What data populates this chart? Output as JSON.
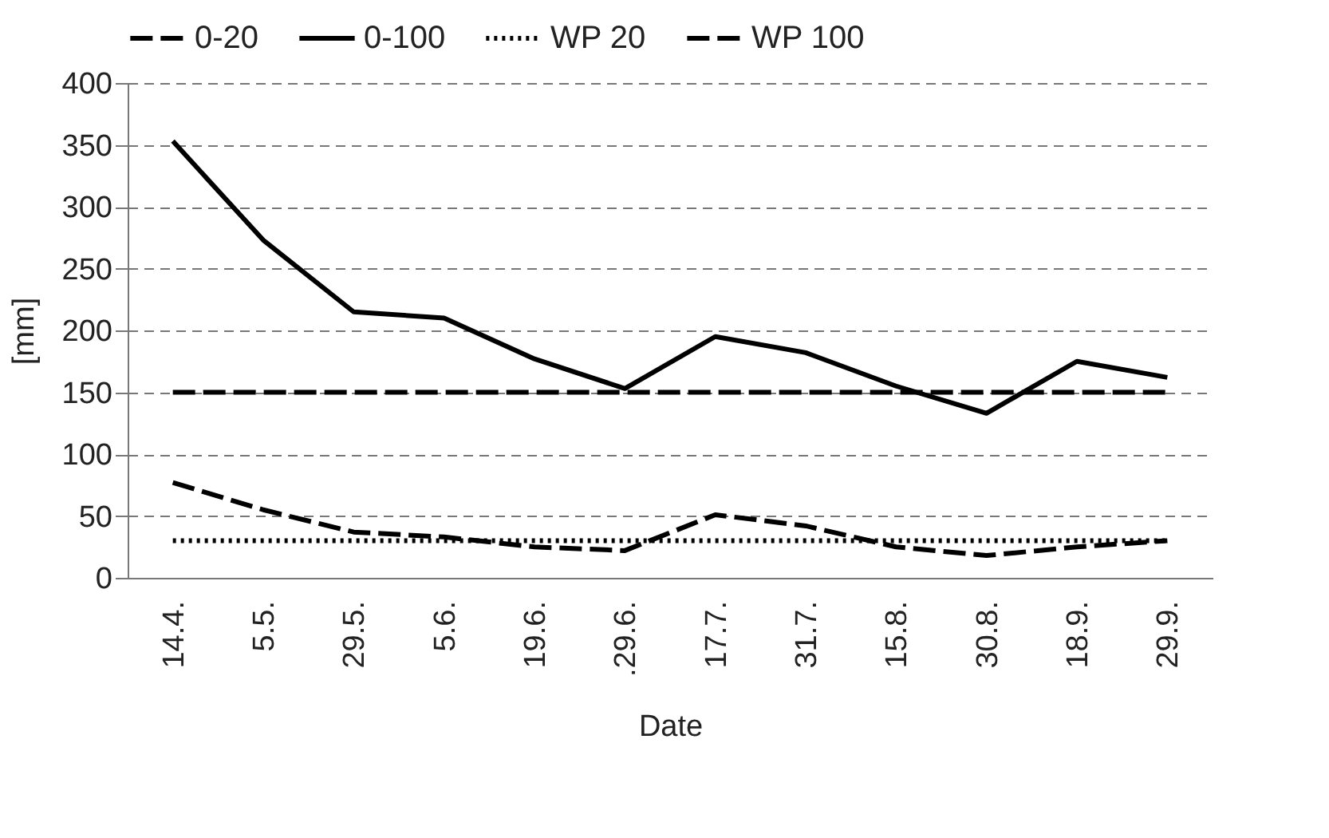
{
  "chart_data": {
    "type": "line",
    "xlabel": "Date",
    "ylabel": "[mm]",
    "categories": [
      "14.4.",
      "5.5.",
      "29.5.",
      "5.6.",
      "19.6.",
      ".29.6.",
      "17.7.",
      "31.7.",
      "15.8.",
      "30.8.",
      "18.9.",
      "29.9."
    ],
    "series": [
      {
        "name": "0-20",
        "color": "#000000",
        "line_style": "dashed",
        "values": [
          77,
          55,
          37,
          33,
          25,
          22,
          51,
          42,
          25,
          18,
          25,
          30
        ]
      },
      {
        "name": "0-100",
        "color": "#000000",
        "line_style": "solid",
        "values": [
          353,
          273,
          215,
          210,
          177,
          153,
          195,
          182,
          155,
          133,
          175,
          162
        ]
      },
      {
        "name": "WP 20",
        "color": "#000000",
        "line_style": "dotted",
        "values": [
          30,
          30,
          30,
          30,
          30,
          30,
          30,
          30,
          30,
          30,
          30,
          30
        ]
      },
      {
        "name": "WP 100",
        "color": "#000000",
        "line_style": "dashed",
        "values": [
          150,
          150,
          150,
          150,
          150,
          150,
          150,
          150,
          150,
          150,
          150,
          150
        ]
      }
    ],
    "ylim": [
      0,
      400
    ],
    "yticks": [
      0,
      50,
      100,
      150,
      200,
      250,
      300,
      350,
      400
    ],
    "grid": "y",
    "legend": "top",
    "marker": "none"
  }
}
